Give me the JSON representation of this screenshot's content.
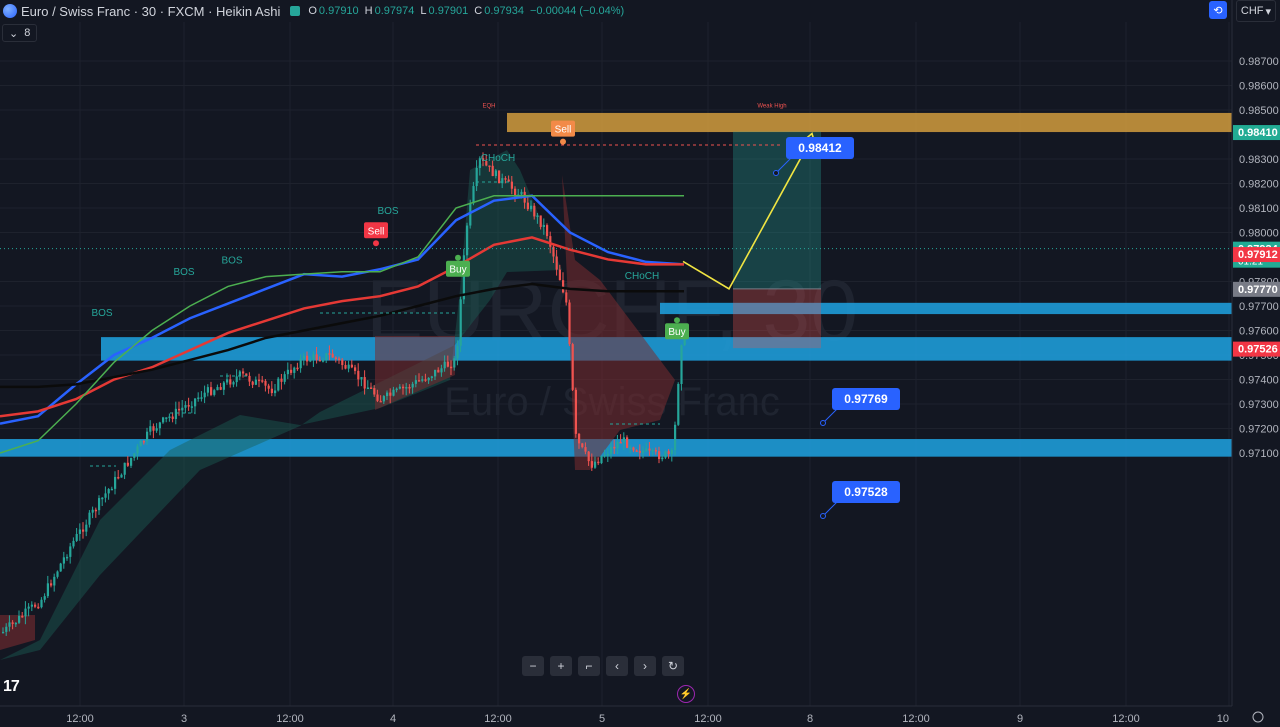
{
  "header": {
    "symbol": "Euro / Swiss Franc · 30 · FXCM · Heikin Ashi",
    "open_label": "O",
    "open": "0.97910",
    "high_label": "H",
    "high": "0.97974",
    "low_label": "L",
    "low": "0.97901",
    "close_label": "C",
    "close": "0.97934",
    "change": "−0.00044 (−0.04%)"
  },
  "indicators_count": "8",
  "currency": "CHF",
  "watermark": {
    "symbol": "EURCHF, 30",
    "name": "Euro / Swiss Franc"
  },
  "colors": {
    "bg": "#131722",
    "up": "#26a69a",
    "down": "#ef5350",
    "ema_blue": "#2962ff",
    "ema_red": "#e53935",
    "sma_black": "#0b0b0b",
    "zone_orange": "#d9a13e",
    "zone_blue": "#1e9bd7",
    "arrow": "#f0e442",
    "label_blue": "#2962ff"
  },
  "chart_data": {
    "type": "candlestick",
    "series_style": "Heikin Ashi",
    "timeframe": "30",
    "yaxis": {
      "ticks": [
        "0.98700",
        "0.98600",
        "0.98500",
        "0.98300",
        "0.98200",
        "0.98100",
        "0.98000",
        "0.97800",
        "0.97700",
        "0.97600",
        "0.97500",
        "0.97400",
        "0.97300",
        "0.97200",
        "0.97100"
      ],
      "price_labels": [
        {
          "text": "0.98410",
          "price": 0.9841,
          "color": "#22ab94"
        },
        {
          "text": "0.97934",
          "sub": "01:21",
          "price": 0.97934,
          "color": "#22ab94"
        },
        {
          "text": "0.97912",
          "price": 0.97912,
          "color": "#f23645"
        },
        {
          "text": "0.97770",
          "price": 0.9777,
          "color": "#787b86"
        },
        {
          "text": "0.97526",
          "price": 0.97526,
          "color": "#f23645"
        }
      ]
    },
    "xaxis": {
      "ticks": [
        "12:00",
        "3",
        "12:00",
        "4",
        "12:00",
        "5",
        "12:00",
        "8",
        "12:00",
        "9",
        "12:00",
        "10"
      ]
    },
    "zones": [
      {
        "type": "supply",
        "color": "#d9a13e",
        "top": 0.98488,
        "bottom": 0.9841
      },
      {
        "type": "demand",
        "color": "#1e9bd7",
        "top": 0.97713,
        "bottom": 0.97667
      },
      {
        "type": "demand",
        "color": "#1e9bd7",
        "top": 0.97573,
        "bottom": 0.97477
      },
      {
        "type": "demand",
        "color": "#1e9bd7",
        "top": 0.97157,
        "bottom": 0.97085
      }
    ],
    "price_callouts": [
      {
        "text": "0.98412",
        "price": 0.98412
      },
      {
        "text": "0.97769",
        "price": 0.97769
      },
      {
        "text": "0.97528",
        "price": 0.97528
      }
    ],
    "position": {
      "entry": 0.9777,
      "target": 0.98412,
      "stop": 0.97528
    },
    "projection_path": [
      0.97882,
      0.9777,
      0.98412
    ],
    "signals": [
      {
        "text": "Sell",
        "type": "sell",
        "price": 0.98005
      },
      {
        "text": "Buy",
        "type": "buy",
        "price": 0.97848
      },
      {
        "text": "Sell",
        "type": "sell",
        "price": 0.9842
      },
      {
        "text": "Buy",
        "type": "buy",
        "price": 0.97593
      }
    ],
    "structure_labels": [
      {
        "text": "BOS",
        "price": 0.97659
      },
      {
        "text": "BOS",
        "price": 0.97827
      },
      {
        "text": "BOS",
        "price": 0.97874
      },
      {
        "text": "BOS",
        "price": 0.98075
      },
      {
        "text": "CHoCH",
        "price": 0.98292
      },
      {
        "text": "CHoCH",
        "price": 0.97811
      },
      {
        "text": "EQH",
        "price": 0.98511
      },
      {
        "text": "Weak High",
        "price": 0.98511
      }
    ],
    "lines": [
      {
        "name": "EMA",
        "color": "#2962ff",
        "values": [
          0.9722,
          0.9725,
          0.9738,
          0.975,
          0.9757,
          0.9765,
          0.9771,
          0.9777,
          0.9783,
          0.9782,
          0.9785,
          0.9789,
          0.9805,
          0.9813,
          0.9815,
          0.98,
          0.9792,
          0.9788,
          0.9787
        ]
      },
      {
        "name": "EMA",
        "color": "#e53935",
        "values": [
          0.9725,
          0.9727,
          0.9732,
          0.974,
          0.9745,
          0.9752,
          0.9759,
          0.9764,
          0.9769,
          0.9772,
          0.9774,
          0.9778,
          0.9786,
          0.9795,
          0.9798,
          0.9793,
          0.9789,
          0.9787,
          0.9787
        ]
      },
      {
        "name": "SMA",
        "color": "#0b0b0b",
        "values": [
          0.9737,
          0.9737,
          0.9738,
          0.9741,
          0.9744,
          0.9748,
          0.9752,
          0.9757,
          0.976,
          0.9763,
          0.9766,
          0.977,
          0.9774,
          0.9777,
          0.9779,
          0.9777,
          0.9776,
          0.9776,
          0.9776
        ]
      },
      {
        "name": "Supertrend",
        "color": "#4caf50",
        "values": [
          0.971,
          0.9715,
          0.973,
          0.9747,
          0.976,
          0.977,
          0.9778,
          0.9782,
          0.9783,
          0.9784,
          0.9784,
          0.979,
          0.981,
          0.9815,
          0.9815,
          0.9815,
          0.9815,
          0.9815,
          0.9815
        ]
      }
    ]
  }
}
